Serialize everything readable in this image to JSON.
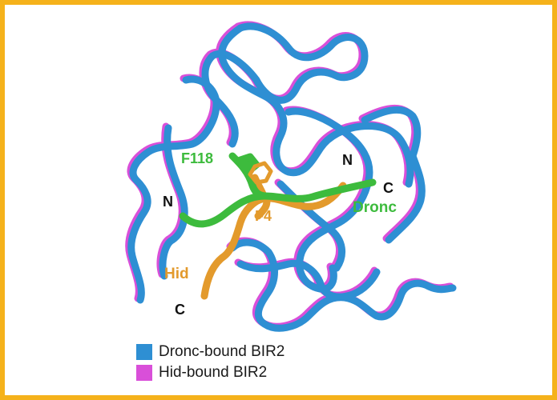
{
  "colors": {
    "border": "#f5b21b",
    "dronc_bound": "#2e8fd3",
    "hid_bound": "#d94fd9",
    "dronc_peptide": "#3dbb3d",
    "hid_peptide": "#e39a2c",
    "terminus_text": "#111111"
  },
  "labels": {
    "f118": "F118",
    "f4": "F4",
    "dronc": "Dronc",
    "hid": "Hid",
    "dronc_n": "N",
    "dronc_c": "C",
    "hid_n": "N",
    "hid_c": "C"
  },
  "legend": {
    "items": [
      {
        "label": "Dronc-bound BIR2",
        "color": "#2e8fd3"
      },
      {
        "label": "Hid-bound BIR2",
        "color": "#d94fd9"
      }
    ]
  }
}
